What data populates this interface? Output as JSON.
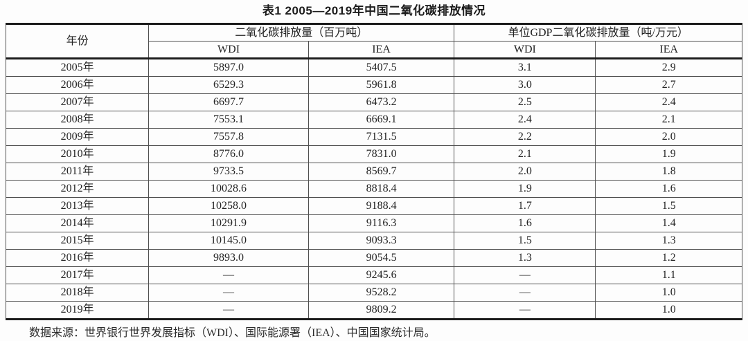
{
  "title": "表1 2005—2019年中国二氧化碳排放情况",
  "table": {
    "year_header": "年份",
    "group1_header": "二氧化碳排放量（百万吨）",
    "group2_header": "单位GDP二氧化碳排放量（吨/万元）",
    "subheaders": [
      "WDI",
      "IEA",
      "WDI",
      "IEA"
    ],
    "rows": [
      {
        "year": "2005年",
        "emissions_wdi": "5897.0",
        "emissions_iea": "5407.5",
        "per_gdp_wdi": "3.1",
        "per_gdp_iea": "2.9"
      },
      {
        "year": "2006年",
        "emissions_wdi": "6529.3",
        "emissions_iea": "5961.8",
        "per_gdp_wdi": "3.0",
        "per_gdp_iea": "2.7"
      },
      {
        "year": "2007年",
        "emissions_wdi": "6697.7",
        "emissions_iea": "6473.2",
        "per_gdp_wdi": "2.5",
        "per_gdp_iea": "2.4"
      },
      {
        "year": "2008年",
        "emissions_wdi": "7553.1",
        "emissions_iea": "6669.1",
        "per_gdp_wdi": "2.4",
        "per_gdp_iea": "2.1"
      },
      {
        "year": "2009年",
        "emissions_wdi": "7557.8",
        "emissions_iea": "7131.5",
        "per_gdp_wdi": "2.2",
        "per_gdp_iea": "2.0"
      },
      {
        "year": "2010年",
        "emissions_wdi": "8776.0",
        "emissions_iea": "7831.0",
        "per_gdp_wdi": "2.1",
        "per_gdp_iea": "1.9"
      },
      {
        "year": "2011年",
        "emissions_wdi": "9733.5",
        "emissions_iea": "8569.7",
        "per_gdp_wdi": "2.0",
        "per_gdp_iea": "1.8"
      },
      {
        "year": "2012年",
        "emissions_wdi": "10028.6",
        "emissions_iea": "8818.4",
        "per_gdp_wdi": "1.9",
        "per_gdp_iea": "1.6"
      },
      {
        "year": "2013年",
        "emissions_wdi": "10258.0",
        "emissions_iea": "9188.4",
        "per_gdp_wdi": "1.7",
        "per_gdp_iea": "1.5"
      },
      {
        "year": "2014年",
        "emissions_wdi": "10291.9",
        "emissions_iea": "9116.3",
        "per_gdp_wdi": "1.6",
        "per_gdp_iea": "1.4"
      },
      {
        "year": "2015年",
        "emissions_wdi": "10145.0",
        "emissions_iea": "9093.3",
        "per_gdp_wdi": "1.5",
        "per_gdp_iea": "1.3"
      },
      {
        "year": "2016年",
        "emissions_wdi": "9893.0",
        "emissions_iea": "9054.5",
        "per_gdp_wdi": "1.3",
        "per_gdp_iea": "1.2"
      },
      {
        "year": "2017年",
        "emissions_wdi": "—",
        "emissions_iea": "9245.6",
        "per_gdp_wdi": "—",
        "per_gdp_iea": "1.1"
      },
      {
        "year": "2018年",
        "emissions_wdi": "—",
        "emissions_iea": "9528.2",
        "per_gdp_wdi": "—",
        "per_gdp_iea": "1.0"
      },
      {
        "year": "2019年",
        "emissions_wdi": "—",
        "emissions_iea": "9809.2",
        "per_gdp_wdi": "—",
        "per_gdp_iea": "1.0"
      }
    ]
  },
  "source_note": "数据来源：世界银行世界发展指标（WDI）、国际能源署（IEA）、中国国家统计局。"
}
